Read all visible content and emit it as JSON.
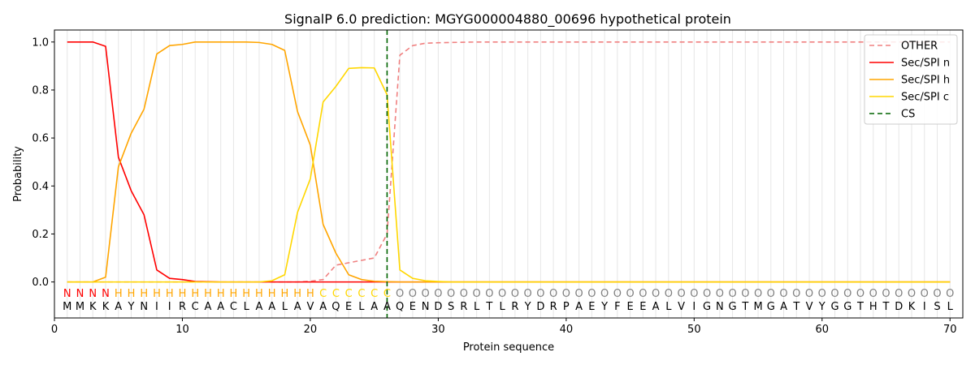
{
  "chart_data": {
    "type": "line",
    "title": "SignalP 6.0 prediction: MGYG000004880_00696 hypothetical protein",
    "xlabel": "Protein sequence",
    "ylabel": "Probability",
    "xlim": [
      0,
      71
    ],
    "ylim": [
      -0.15,
      1.05
    ],
    "xticks": [
      0,
      10,
      20,
      30,
      40,
      50,
      60,
      70
    ],
    "yticks": [
      0.0,
      0.2,
      0.4,
      0.6,
      0.8,
      1.0
    ],
    "grid": "vertical lines at each residue",
    "legend_position": "top-right",
    "x": [
      1,
      2,
      3,
      4,
      5,
      6,
      7,
      8,
      9,
      10,
      11,
      12,
      13,
      14,
      15,
      16,
      17,
      18,
      19,
      20,
      21,
      22,
      23,
      24,
      25,
      26,
      27,
      28,
      29,
      30,
      31,
      32,
      33,
      34,
      35,
      36,
      37,
      38,
      39,
      40,
      41,
      42,
      43,
      44,
      45,
      46,
      47,
      48,
      49,
      50,
      51,
      52,
      53,
      54,
      55,
      56,
      57,
      58,
      59,
      60,
      61,
      62,
      63,
      64,
      65,
      66,
      67,
      68,
      69,
      70
    ],
    "sequence": [
      "M",
      "M",
      "K",
      "K",
      "A",
      "Y",
      "N",
      "I",
      "I",
      "R",
      "C",
      "A",
      "A",
      "C",
      "L",
      "A",
      "A",
      "L",
      "A",
      "V",
      "A",
      "Q",
      "E",
      "L",
      "A",
      "A",
      "Q",
      "E",
      "N",
      "D",
      "S",
      "R",
      "L",
      "T",
      "L",
      "R",
      "Y",
      "D",
      "R",
      "P",
      "A",
      "E",
      "Y",
      "F",
      "E",
      "E",
      "A",
      "L",
      "V",
      "I",
      "G",
      "N",
      "G",
      "T",
      "M",
      "G",
      "A",
      "T",
      "V",
      "Y",
      "G",
      "G",
      "T",
      "H",
      "T",
      "D",
      "K",
      "I",
      "S",
      "L"
    ],
    "labels": [
      "N",
      "N",
      "N",
      "N",
      "H",
      "H",
      "H",
      "H",
      "H",
      "H",
      "H",
      "H",
      "H",
      "H",
      "H",
      "H",
      "H",
      "H",
      "H",
      "H",
      "C",
      "C",
      "C",
      "C",
      "C",
      "C",
      "O",
      "O",
      "O",
      "O",
      "O",
      "O",
      "O",
      "O",
      "O",
      "O",
      "O",
      "O",
      "O",
      "O",
      "O",
      "O",
      "O",
      "O",
      "O",
      "O",
      "O",
      "O",
      "O",
      "O",
      "O",
      "O",
      "O",
      "O",
      "O",
      "O",
      "O",
      "O",
      "O",
      "O",
      "O",
      "O",
      "O",
      "O",
      "O",
      "O",
      "O",
      "O",
      "O",
      "O"
    ],
    "label_colors": {
      "N": "#ff0000",
      "H": "#ffa500",
      "C": "#ffd700",
      "O": "#808080"
    },
    "series": [
      {
        "name": "OTHER",
        "color": "#f08080",
        "dash": "dashed",
        "values": [
          0,
          0,
          0,
          0,
          0,
          0,
          0,
          0,
          0,
          0,
          0,
          0,
          0,
          0,
          0,
          0,
          0,
          0,
          0,
          0.003,
          0.01,
          0.07,
          0.08,
          0.09,
          0.1,
          0.2,
          0.945,
          0.985,
          0.995,
          0.997,
          0.998,
          0.999,
          1,
          1,
          1,
          1,
          1,
          1,
          1,
          1,
          1,
          1,
          1,
          1,
          1,
          1,
          1,
          1,
          1,
          1,
          1,
          1,
          1,
          1,
          1,
          1,
          1,
          1,
          1,
          1,
          1,
          1,
          1,
          1,
          1,
          1,
          1,
          1,
          1,
          1
        ]
      },
      {
        "name": "Sec/SPI n",
        "color": "#ff0000",
        "dash": "solid",
        "values": [
          1,
          1,
          1,
          0.982,
          0.52,
          0.38,
          0.28,
          0.05,
          0.015,
          0.01,
          0.002,
          0.001,
          0,
          0,
          0,
          0,
          0,
          0,
          0,
          0,
          0,
          0,
          0,
          0,
          0,
          0,
          0,
          0,
          0,
          0,
          0,
          0,
          0,
          0,
          0,
          0,
          0,
          0,
          0,
          0,
          0,
          0,
          0,
          0,
          0,
          0,
          0,
          0,
          0,
          0,
          0,
          0,
          0,
          0,
          0,
          0,
          0,
          0,
          0,
          0,
          0,
          0,
          0,
          0,
          0,
          0,
          0,
          0,
          0,
          0
        ]
      },
      {
        "name": "Sec/SPI h",
        "color": "#ffa500",
        "dash": "solid",
        "values": [
          0,
          0,
          0,
          0.02,
          0.48,
          0.62,
          0.72,
          0.95,
          0.985,
          0.99,
          1,
          1,
          1,
          1,
          1,
          0.998,
          0.99,
          0.965,
          0.71,
          0.57,
          0.24,
          0.12,
          0.03,
          0.01,
          0.003,
          0.001,
          0,
          0,
          0,
          0,
          0,
          0,
          0,
          0,
          0,
          0,
          0,
          0,
          0,
          0,
          0,
          0,
          0,
          0,
          0,
          0,
          0,
          0,
          0,
          0,
          0,
          0,
          0,
          0,
          0,
          0,
          0,
          0,
          0,
          0,
          0,
          0,
          0,
          0,
          0,
          0,
          0,
          0,
          0,
          0
        ]
      },
      {
        "name": "Sec/SPI c",
        "color": "#ffd700",
        "dash": "solid",
        "values": [
          0,
          0,
          0,
          0,
          0,
          0,
          0,
          0,
          0,
          0,
          0,
          0,
          0,
          0,
          0,
          0,
          0.005,
          0.03,
          0.29,
          0.43,
          0.75,
          0.815,
          0.89,
          0.893,
          0.892,
          0.78,
          0.05,
          0.015,
          0.005,
          0.002,
          0,
          0,
          0,
          0,
          0,
          0,
          0,
          0,
          0,
          0,
          0,
          0,
          0,
          0,
          0,
          0,
          0,
          0,
          0,
          0,
          0,
          0,
          0,
          0,
          0,
          0,
          0,
          0,
          0,
          0,
          0,
          0,
          0,
          0,
          0,
          0,
          0,
          0,
          0,
          0
        ]
      },
      {
        "name": "CS",
        "color": "#006400",
        "dash": "dashed",
        "vertical_at": 26
      }
    ]
  }
}
